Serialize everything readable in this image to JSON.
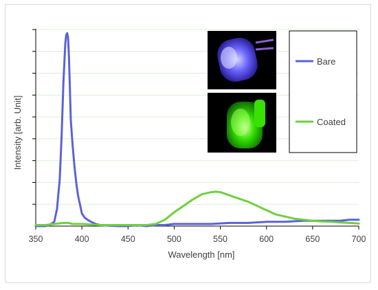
{
  "chart_data": {
    "type": "line",
    "title": "",
    "xlabel": "Wavelength [nm]",
    "ylabel": "Intensity [arb. Unit]",
    "xlim": [
      350,
      700
    ],
    "x_ticks": [
      350,
      400,
      450,
      500,
      550,
      600,
      650,
      700
    ],
    "ylim": [
      0,
      9.3
    ],
    "y_tick_count": 9,
    "grid": "horizontal",
    "legend_position": "top-right",
    "series": [
      {
        "name": "Bare",
        "color": "#5b62d6",
        "x": [
          350,
          360,
          365,
          370,
          373,
          376,
          378,
          380,
          382,
          383,
          384,
          385,
          386,
          387,
          388,
          390,
          392,
          394,
          396,
          398,
          400,
          403,
          406,
          410,
          415,
          420,
          430,
          440,
          450,
          460,
          470,
          480,
          490,
          500,
          520,
          540,
          560,
          580,
          600,
          620,
          640,
          660,
          680,
          690,
          700
        ],
        "y": [
          0.0,
          0.0,
          0.05,
          0.2,
          0.8,
          2.2,
          4.2,
          6.8,
          8.6,
          9.0,
          9.1,
          8.9,
          8.0,
          6.5,
          5.0,
          3.8,
          2.8,
          2.0,
          1.4,
          1.0,
          0.6,
          0.4,
          0.3,
          0.2,
          0.1,
          0.05,
          0.02,
          0.0,
          0.0,
          0.05,
          0.0,
          0.05,
          0.05,
          0.1,
          0.1,
          0.1,
          0.15,
          0.15,
          0.2,
          0.2,
          0.25,
          0.25,
          0.25,
          0.3,
          0.3
        ]
      },
      {
        "name": "Coated",
        "color": "#6fcf3f",
        "x": [
          350,
          360,
          370,
          380,
          385,
          390,
          400,
          420,
          440,
          460,
          470,
          480,
          490,
          500,
          510,
          520,
          530,
          540,
          545,
          550,
          560,
          570,
          580,
          590,
          600,
          610,
          620,
          630,
          640,
          650,
          660,
          670,
          680,
          690,
          700
        ],
        "y": [
          0.05,
          0.05,
          0.1,
          0.15,
          0.15,
          0.1,
          0.1,
          0.05,
          0.05,
          0.05,
          0.05,
          0.1,
          0.3,
          0.65,
          0.95,
          1.25,
          1.5,
          1.6,
          1.62,
          1.6,
          1.45,
          1.3,
          1.15,
          0.95,
          0.75,
          0.55,
          0.45,
          0.35,
          0.3,
          0.25,
          0.22,
          0.2,
          0.17,
          0.15,
          0.12
        ]
      }
    ]
  },
  "images": {
    "bare_led_icon": "bare-led-photo",
    "coated_led_icon": "coated-led-photo"
  }
}
